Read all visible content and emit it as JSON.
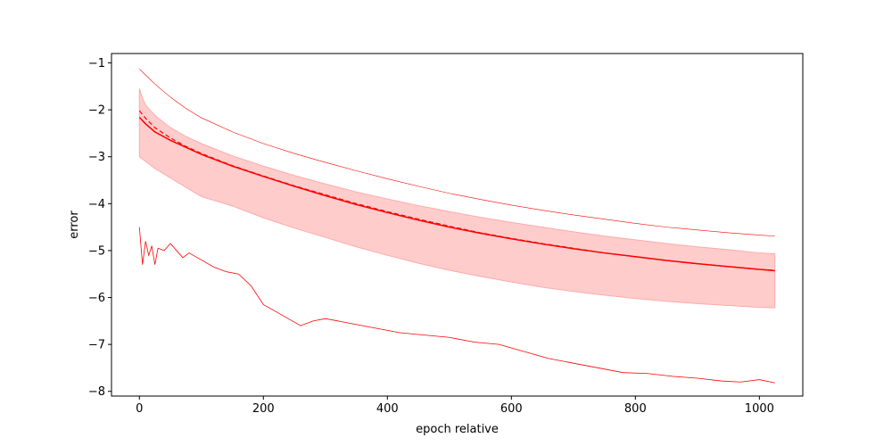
{
  "chart_data": {
    "type": "line",
    "title": "",
    "xlabel": "epoch relative",
    "ylabel": "error",
    "xlim": [
      -45,
      1070
    ],
    "ylim": [
      -8.1,
      -0.8
    ],
    "x_ticks": [
      0,
      200,
      400,
      600,
      800,
      1000
    ],
    "y_ticks": [
      -8,
      -7,
      -6,
      -5,
      -4,
      -3,
      -2,
      -1
    ],
    "grid": false,
    "legend": "none",
    "color": "#ff0000",
    "band_fill": "#ffcccc",
    "series": [
      {
        "style": "solid",
        "x": [
          0,
          10,
          25,
          50,
          75,
          100,
          150,
          200,
          250,
          300,
          350,
          400,
          450,
          500,
          550,
          600,
          650,
          700,
          750,
          800,
          850,
          900,
          950,
          1000,
          1025
        ],
        "values": [
          -2.16,
          -2.3,
          -2.47,
          -2.65,
          -2.8,
          -2.95,
          -3.2,
          -3.42,
          -3.63,
          -3.83,
          -4.02,
          -4.19,
          -4.35,
          -4.5,
          -4.63,
          -4.75,
          -4.86,
          -4.96,
          -5.05,
          -5.13,
          -5.21,
          -5.28,
          -5.34,
          -5.4,
          -5.43
        ]
      },
      {
        "style": "dashed",
        "x": [
          0,
          10,
          25,
          50,
          75,
          100,
          150,
          200,
          250,
          300,
          350,
          400,
          450,
          500,
          550,
          600,
          650,
          700,
          750,
          800,
          850,
          900,
          950,
          1000,
          1025
        ],
        "values": [
          -2.02,
          -2.18,
          -2.38,
          -2.6,
          -2.78,
          -2.93,
          -3.19,
          -3.41,
          -3.62,
          -3.81,
          -4.0,
          -4.17,
          -4.33,
          -4.48,
          -4.62,
          -4.74,
          -4.85,
          -4.95,
          -5.05,
          -5.13,
          -5.21,
          -5.28,
          -5.34,
          -5.4,
          -5.42
        ]
      },
      {
        "style": "thin",
        "x": [
          0,
          25,
          50,
          75,
          100,
          150,
          200,
          250,
          300,
          350,
          400,
          450,
          500,
          550,
          600,
          650,
          700,
          750,
          800,
          850,
          900,
          950,
          1000,
          1025
        ],
        "values": [
          -1.13,
          -1.45,
          -1.73,
          -1.97,
          -2.17,
          -2.47,
          -2.72,
          -2.93,
          -3.12,
          -3.3,
          -3.47,
          -3.63,
          -3.78,
          -3.91,
          -4.03,
          -4.14,
          -4.24,
          -4.33,
          -4.42,
          -4.5,
          -4.56,
          -4.62,
          -4.67,
          -4.69
        ]
      },
      {
        "style": "noisy",
        "x": [
          0,
          5,
          10,
          15,
          20,
          25,
          30,
          40,
          50,
          60,
          70,
          80,
          100,
          120,
          140,
          160,
          180,
          200,
          220,
          240,
          260,
          280,
          300,
          340,
          380,
          420,
          460,
          500,
          540,
          580,
          620,
          660,
          700,
          740,
          780,
          820,
          860,
          900,
          940,
          970,
          1000,
          1025
        ],
        "values": [
          -4.5,
          -5.3,
          -4.8,
          -5.1,
          -4.9,
          -5.3,
          -4.95,
          -5.0,
          -4.85,
          -5.0,
          -5.15,
          -5.05,
          -5.2,
          -5.35,
          -5.45,
          -5.5,
          -5.75,
          -6.15,
          -6.3,
          -6.45,
          -6.6,
          -6.5,
          -6.45,
          -6.55,
          -6.65,
          -6.75,
          -6.8,
          -6.85,
          -6.95,
          -7.0,
          -7.15,
          -7.3,
          -7.4,
          -7.5,
          -7.6,
          -7.62,
          -7.68,
          -7.72,
          -7.78,
          -7.8,
          -7.75,
          -7.82
        ]
      }
    ],
    "band": {
      "x": [
        0,
        5,
        10,
        25,
        50,
        75,
        100,
        150,
        200,
        250,
        300,
        350,
        400,
        450,
        500,
        550,
        600,
        650,
        700,
        750,
        800,
        850,
        900,
        950,
        1000,
        1025
      ],
      "upper": [
        -1.55,
        -1.75,
        -1.9,
        -2.12,
        -2.38,
        -2.57,
        -2.72,
        -2.98,
        -3.2,
        -3.4,
        -3.58,
        -3.75,
        -3.9,
        -4.04,
        -4.17,
        -4.29,
        -4.4,
        -4.5,
        -4.6,
        -4.69,
        -4.77,
        -4.85,
        -4.92,
        -4.98,
        -5.05,
        -5.07
      ],
      "lower": [
        -3.0,
        -3.05,
        -3.1,
        -3.25,
        -3.45,
        -3.65,
        -3.85,
        -4.05,
        -4.3,
        -4.52,
        -4.72,
        -4.92,
        -5.1,
        -5.27,
        -5.42,
        -5.55,
        -5.67,
        -5.78,
        -5.87,
        -5.95,
        -6.02,
        -6.08,
        -6.13,
        -6.17,
        -6.21,
        -6.22
      ]
    }
  }
}
